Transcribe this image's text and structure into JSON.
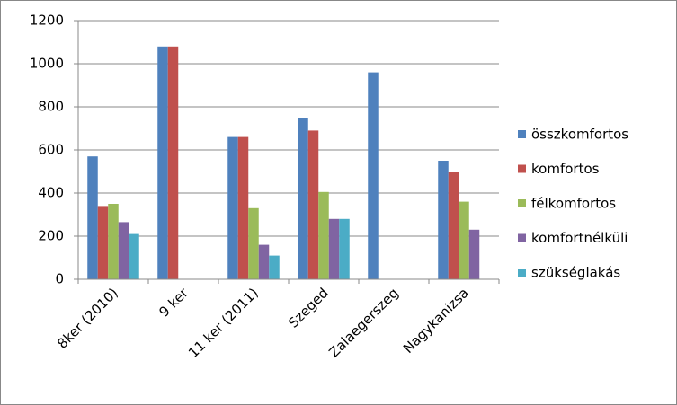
{
  "chart_data": {
    "type": "bar",
    "categories": [
      "8ker (2010)",
      "9 ker",
      "11 ker (2011)",
      "Szeged",
      "Zalaegerszeg",
      "Nagykanizsa"
    ],
    "series": [
      {
        "name": "összkomfortos",
        "color": "#4f81bd",
        "values": [
          570,
          1080,
          660,
          750,
          960,
          550
        ]
      },
      {
        "name": "komfortos",
        "color": "#c0504d",
        "values": [
          340,
          1080,
          660,
          690,
          null,
          500
        ]
      },
      {
        "name": "félkomfortos",
        "color": "#9bbb59",
        "values": [
          350,
          null,
          330,
          405,
          null,
          360
        ]
      },
      {
        "name": "komfortnélküli",
        "color": "#8064a2",
        "values": [
          265,
          null,
          160,
          280,
          null,
          230
        ]
      },
      {
        "name": "szükséglakás",
        "color": "#4bacc6",
        "values": [
          210,
          null,
          110,
          280,
          null,
          null
        ]
      }
    ],
    "ylim": [
      0,
      1200
    ],
    "yticks": [
      0,
      200,
      400,
      600,
      800,
      1000,
      1200
    ],
    "grid": true,
    "legend": "right"
  }
}
